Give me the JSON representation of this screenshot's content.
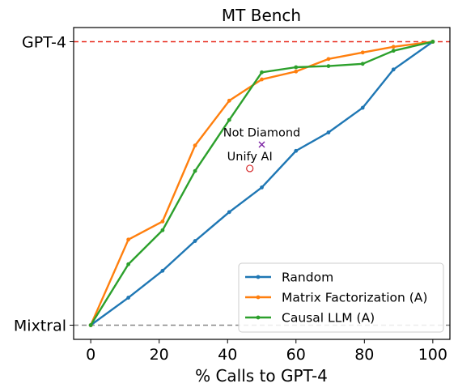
{
  "chart_data": {
    "type": "line",
    "title": "MT Bench",
    "xlabel": "% Calls to GPT-4",
    "ylabel": "",
    "xlim": [
      -5,
      105
    ],
    "ylim": [
      -0.05,
      1.05
    ],
    "x_ticks": [
      0,
      20,
      40,
      60,
      80,
      100
    ],
    "y_ticks": [
      {
        "value": 0,
        "label": "Mixtral"
      },
      {
        "value": 1,
        "label": "GPT-4"
      }
    ],
    "reference_lines": [
      {
        "value": 1,
        "color": "#e8291c",
        "style": "dashed",
        "label": "GPT-4"
      },
      {
        "value": 0,
        "color": "#888888",
        "style": "dashed",
        "label": "Mixtral"
      }
    ],
    "series": [
      {
        "name": "Random",
        "color": "#1f77b4",
        "x": [
          0,
          11,
          21,
          30.5,
          40.5,
          50,
          60,
          69.5,
          79.5,
          88.5,
          100
        ],
        "y": [
          0,
          0.097,
          0.192,
          0.297,
          0.399,
          0.486,
          0.615,
          0.68,
          0.767,
          0.902,
          1.0
        ]
      },
      {
        "name": "Matrix Factorization (A)",
        "color": "#ff7f0e",
        "x": [
          0,
          11,
          21,
          30.5,
          40.5,
          50,
          60,
          69.5,
          79.5,
          88.5,
          100
        ],
        "y": [
          0,
          0.302,
          0.366,
          0.634,
          0.792,
          0.867,
          0.895,
          0.939,
          0.962,
          0.982,
          1.0
        ]
      },
      {
        "name": "Causal LLM (A)",
        "color": "#2ca02c",
        "x": [
          0,
          11,
          21,
          30.5,
          40.5,
          50,
          60,
          69.5,
          79.5,
          88.5,
          100
        ],
        "y": [
          0,
          0.215,
          0.335,
          0.544,
          0.724,
          0.892,
          0.91,
          0.914,
          0.922,
          0.968,
          1.0
        ]
      }
    ],
    "annotations": [
      {
        "label": "Not Diamond",
        "x": 50,
        "y": 0.637,
        "marker": "x",
        "color": "#7a1fa2"
      },
      {
        "label": "Unify AI",
        "x": 46.5,
        "y": 0.553,
        "marker": "circle-open",
        "color": "#d62728"
      }
    ],
    "legend": {
      "placement": "bottom-right"
    },
    "grid": false
  }
}
